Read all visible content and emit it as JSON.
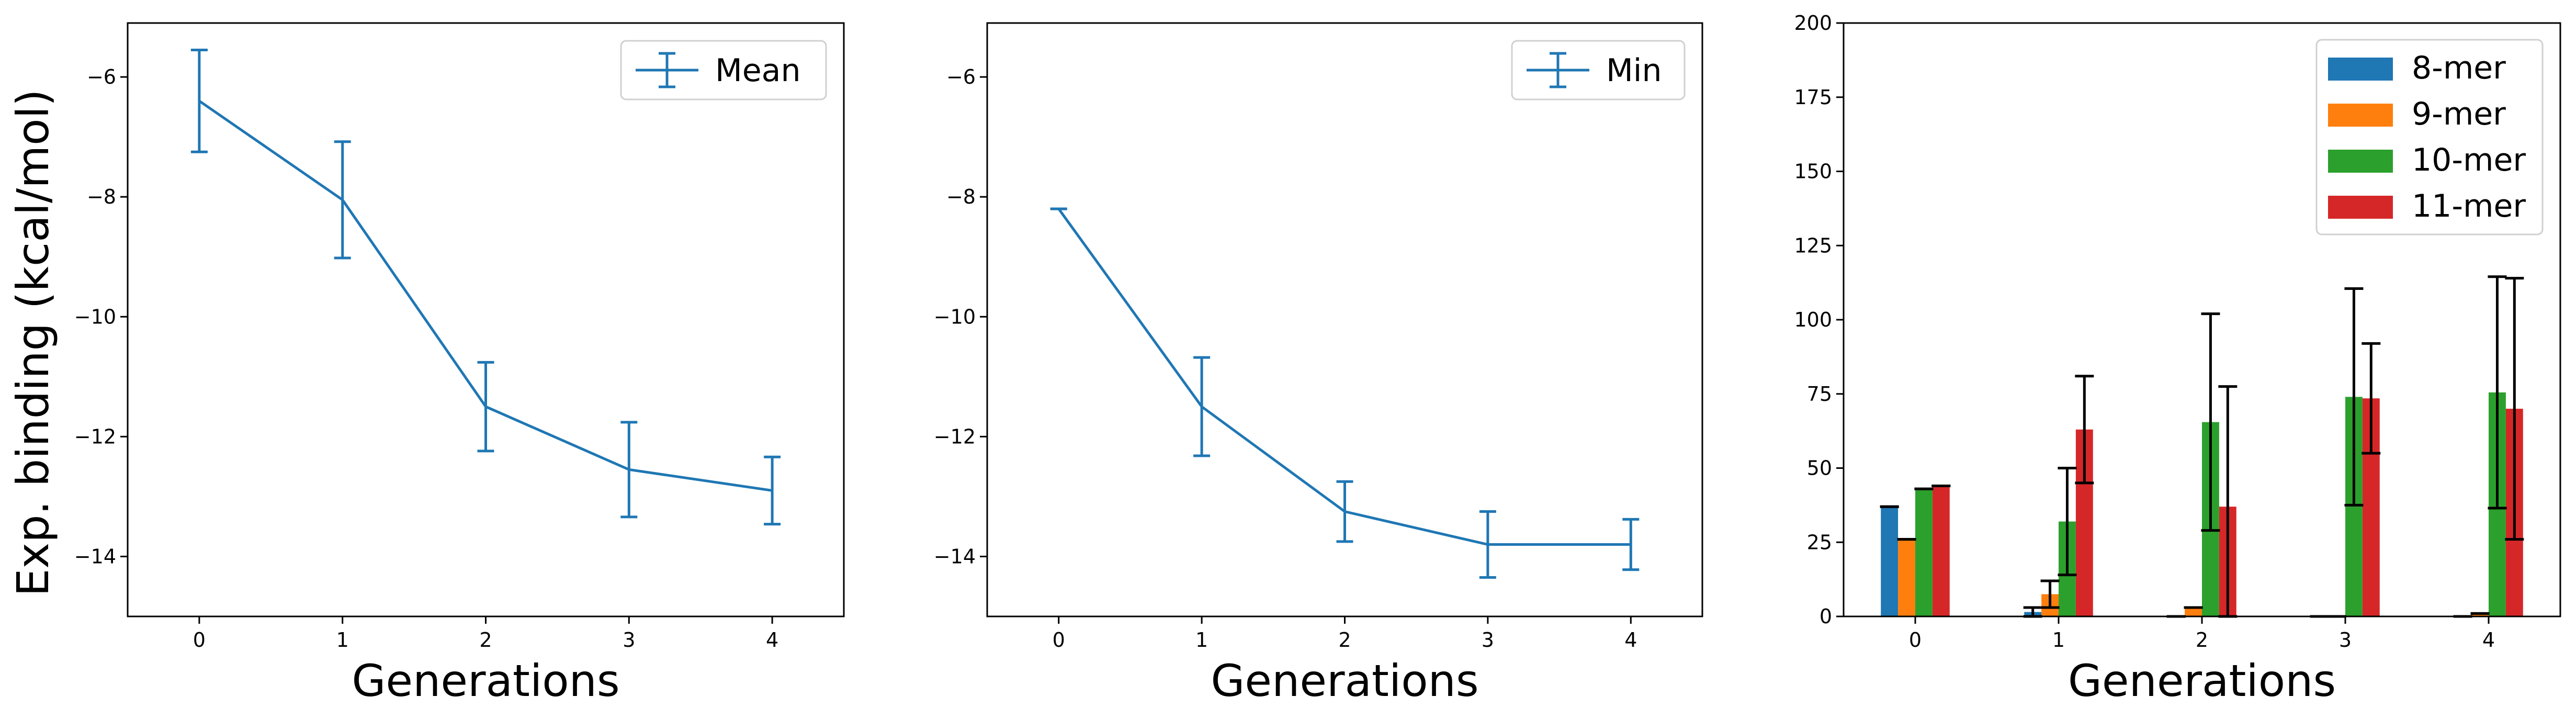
{
  "figure": {
    "ylabel": "Exp. binding (kcal/mol)"
  },
  "colors": {
    "blue": "#1f77b4",
    "orange": "#ff7f0e",
    "green": "#2ca02c",
    "red": "#d62728",
    "errbar": "#000000"
  },
  "chart_data": [
    {
      "type": "line",
      "xlabel": "Generations",
      "ylabel": "Exp. binding (kcal/mol)",
      "legend": "upper right",
      "grid": false,
      "xlim": [
        -0.5,
        4.5
      ],
      "ylim": [
        -15,
        -5.1
      ],
      "xticks": [
        0,
        1,
        2,
        3,
        4
      ],
      "yticks": [
        -14,
        -12,
        -10,
        -8,
        -6
      ],
      "series": [
        {
          "name": "Mean",
          "x": [
            0,
            1,
            2,
            3,
            4
          ],
          "y": [
            -6.4,
            -8.05,
            -11.5,
            -12.55,
            -12.9
          ],
          "err": [
            0.85,
            0.97,
            0.74,
            0.79,
            0.56
          ]
        }
      ]
    },
    {
      "type": "line",
      "xlabel": "Generations",
      "legend": "upper right",
      "grid": false,
      "xlim": [
        -0.5,
        4.5
      ],
      "ylim": [
        -15,
        -5.1
      ],
      "xticks": [
        0,
        1,
        2,
        3,
        4
      ],
      "yticks": [
        -14,
        -12,
        -10,
        -8,
        -6
      ],
      "series": [
        {
          "name": "Min",
          "x": [
            0,
            1,
            2,
            3,
            4
          ],
          "y": [
            -8.2,
            -11.5,
            -13.25,
            -13.8,
            -13.8
          ],
          "err": [
            0.0,
            0.82,
            0.5,
            0.55,
            0.42
          ]
        }
      ]
    },
    {
      "type": "bar",
      "xlabel": "Generations",
      "legend": "upper right",
      "grid": false,
      "xlim": [
        -0.5,
        4.5
      ],
      "ylim": [
        0,
        200
      ],
      "xticks": [
        0,
        1,
        2,
        3,
        4
      ],
      "yticks": [
        0,
        25,
        50,
        75,
        100,
        125,
        150,
        175,
        200
      ],
      "categories": [
        0,
        1,
        2,
        3,
        4
      ],
      "series": [
        {
          "name": "8-mer",
          "values": [
            37,
            1.5,
            0,
            0,
            0
          ],
          "err": [
            0,
            1.5,
            0,
            0,
            0
          ]
        },
        {
          "name": "9-mer",
          "values": [
            26,
            7.5,
            3,
            0,
            1
          ],
          "err": [
            0,
            4.5,
            0,
            0,
            0
          ]
        },
        {
          "name": "10-mer",
          "values": [
            43,
            32,
            65.5,
            74,
            75.5
          ],
          "err": [
            0,
            18,
            36.5,
            36.5,
            39
          ]
        },
        {
          "name": "11-mer",
          "values": [
            44,
            63,
            37,
            73.5,
            70
          ],
          "err": [
            0,
            18,
            40.5,
            18.5,
            44
          ]
        }
      ]
    }
  ]
}
